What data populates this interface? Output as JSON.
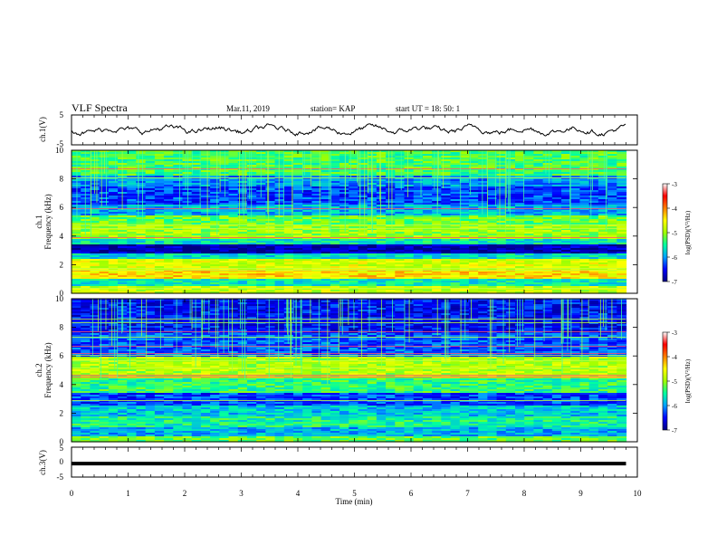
{
  "header": {
    "title": "VLF Spectra",
    "date": "Mar.11, 2019",
    "station": "station= KAP",
    "start": "start  UT =   18: 50: 1"
  },
  "chart_data": [
    {
      "type": "line",
      "panel": "ch1-waveform",
      "ylabel": "ch.1(V)",
      "ylim": [
        -5,
        5
      ],
      "yticks": [
        "5",
        "-5"
      ],
      "xlim": [
        0,
        10
      ],
      "description_of_values": "noisy waveform oscillating roughly between -2 and 2 V over 0–9.8 min",
      "amplitude_range": [
        -2,
        2
      ]
    },
    {
      "type": "heatmap",
      "panel": "ch1-spectrogram",
      "ylabel": "Frequency (kHz)",
      "channel_label": "ch.1",
      "ylim": [
        0,
        10
      ],
      "yticks": [
        "0",
        "2",
        "4",
        "6",
        "8",
        "10"
      ],
      "xlim": [
        0,
        10
      ],
      "data_end_min": 9.8,
      "colorbar": {
        "label": "log(PSD)(V²/Hz)",
        "range": [
          -7,
          -3
        ],
        "ticks": [
          "-3",
          "-4",
          "-5",
          "-6",
          "-7"
        ],
        "colors": [
          "#000080",
          "#0000ff",
          "#00a0ff",
          "#00ffa0",
          "#a0ff00",
          "#ffff00",
          "#ff8000",
          "#ff0000",
          "#ffffff"
        ]
      },
      "bands": [
        {
          "from": 0.0,
          "to": 0.5,
          "level": -4.8
        },
        {
          "from": 0.5,
          "to": 1.0,
          "level": -5.6
        },
        {
          "from": 1.0,
          "to": 1.6,
          "level": -4.4
        },
        {
          "from": 1.6,
          "to": 2.4,
          "level": -4.7
        },
        {
          "from": 2.4,
          "to": 2.8,
          "level": -5.7
        },
        {
          "from": 2.8,
          "to": 3.4,
          "level": -6.8
        },
        {
          "from": 3.4,
          "to": 3.8,
          "level": -5.6
        },
        {
          "from": 3.8,
          "to": 4.8,
          "level": -5.0
        },
        {
          "from": 4.8,
          "to": 5.5,
          "level": -5.2
        },
        {
          "from": 5.5,
          "to": 6.2,
          "level": -5.9
        },
        {
          "from": 6.2,
          "to": 7.5,
          "level": -6.3
        },
        {
          "from": 7.5,
          "to": 8.3,
          "level": -6.0
        },
        {
          "from": 8.3,
          "to": 10.0,
          "level": -5.3
        }
      ]
    },
    {
      "type": "heatmap",
      "panel": "ch2-spectrogram",
      "ylabel": "Frequency (kHz)",
      "channel_label": "ch.2",
      "ylim": [
        0,
        10
      ],
      "yticks": [
        "0",
        "2",
        "4",
        "6",
        "8",
        "10"
      ],
      "xlim": [
        0,
        10
      ],
      "data_end_min": 9.8,
      "colorbar": {
        "label": "log(PSD)(V²/Hz)",
        "range": [
          -7,
          -3
        ],
        "ticks": [
          "-3",
          "-4",
          "-5",
          "-6",
          "-7"
        ]
      },
      "bands": [
        {
          "from": 0.0,
          "to": 0.4,
          "level": -5.2
        },
        {
          "from": 0.4,
          "to": 1.0,
          "level": -5.9
        },
        {
          "from": 1.0,
          "to": 1.8,
          "level": -5.5
        },
        {
          "from": 1.8,
          "to": 2.6,
          "level": -5.8
        },
        {
          "from": 2.6,
          "to": 3.4,
          "level": -6.3
        },
        {
          "from": 3.4,
          "to": 4.4,
          "level": -5.4
        },
        {
          "from": 4.4,
          "to": 6.0,
          "level": -4.9
        },
        {
          "from": 6.0,
          "to": 7.6,
          "level": -6.2
        },
        {
          "from": 7.6,
          "to": 10.0,
          "level": -6.5
        }
      ]
    },
    {
      "type": "line",
      "panel": "ch3-waveform",
      "ylabel": "ch.3(V)",
      "ylim": [
        -5,
        5
      ],
      "yticks": [
        "5",
        "0",
        "-5"
      ],
      "xlim": [
        0,
        10
      ],
      "value": -0.2
    }
  ],
  "xaxis": {
    "label": "Time  (min)",
    "ticks": [
      "0",
      "1",
      "2",
      "3",
      "4",
      "5",
      "6",
      "7",
      "8",
      "9",
      "10"
    ]
  }
}
